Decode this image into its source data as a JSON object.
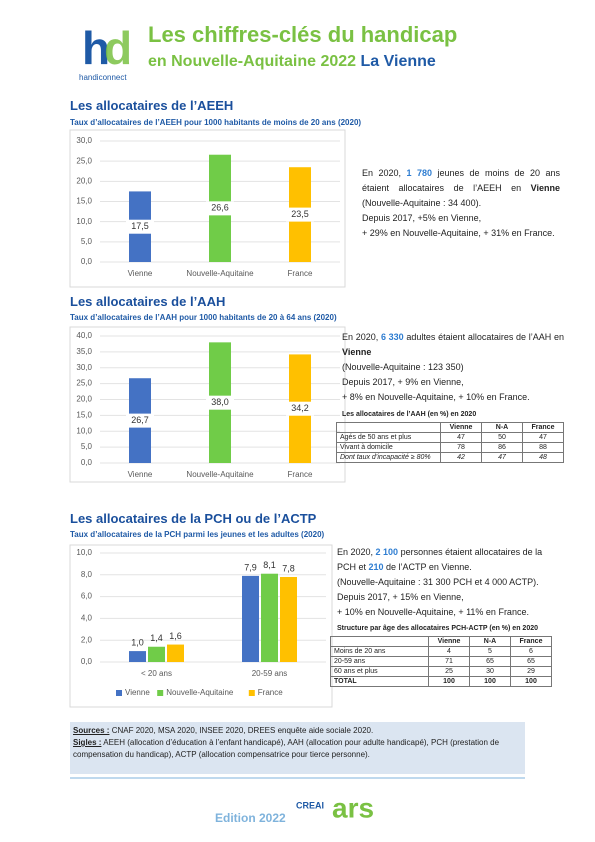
{
  "header": {
    "logo_text": "handiconnect",
    "title": "Les chiffres-clés du handicap",
    "subtitle": "en Nouvelle-Aquitaine 2022",
    "territory": "La Vienne"
  },
  "sections": [
    {
      "heading": "Les allocataires de l’AEEH",
      "text": [
        "En 2020, ",
        "1 780",
        " jeunes de moins de 20 ans étaient allocataires de l’AEEH en ",
        "Vienne",
        " (Nouvelle-Aquitaine : 34 400).",
        "Depuis 2017, +5% en Vienne,",
        "+ 29% en Nouvelle-Aquitaine, + 31% en France."
      ]
    },
    {
      "heading": "Les allocataires de l’AAH",
      "text": [
        "En 2020, ",
        "6 330",
        " adultes étaient allocataires de l’AAH en ",
        "Vienne",
        "(Nouvelle-Aquitaine : 123 350)",
        "Depuis 2017, + 9% en Vienne,",
        "+ 8% en Nouvelle-Aquitaine, + 10% en France."
      ],
      "table": {
        "title": "Les allocataires de l’AAH (en %) en 2020",
        "columns": [
          "Vienne",
          "N-A",
          "France"
        ],
        "rows": [
          [
            "Agés de 50 ans et plus",
            47,
            50,
            47
          ],
          [
            "Vivant à domicile",
            78,
            86,
            88
          ],
          [
            "Dont taux d’incapacité ≥ 80%",
            42,
            47,
            48
          ]
        ]
      }
    },
    {
      "heading": "Les allocataires de la PCH ou de l’ACTP",
      "text": [
        "En 2020, ",
        "2 100",
        " personnes étaient allocataires de la PCH et ",
        "210",
        " de l’ACTP en Vienne.",
        "(Nouvelle-Aquitaine : 31 300 PCH et 4 000 ACTP).",
        "Depuis 2017, + 15% en Vienne,",
        "+ 10% en Nouvelle-Aquitaine, + 11% en France."
      ],
      "table": {
        "title": "Structure par âge des allocataires PCH-ACTP (en %) en 2020",
        "columns": [
          "Vienne",
          "N-A",
          "France"
        ],
        "rows": [
          [
            "Moins de 20 ans",
            4,
            5,
            6
          ],
          [
            "20-59 ans",
            71,
            65,
            65
          ],
          [
            "60 ans et plus",
            25,
            30,
            29
          ],
          [
            "TOTAL",
            100,
            100,
            100
          ]
        ]
      }
    }
  ],
  "chart_data": [
    {
      "type": "bar",
      "title": "Taux d’allocataires de l’AEEH pour 1000 habitants de moins de 20 ans (2020)",
      "categories": [
        "Vienne",
        "Nouvelle-Aquitaine",
        "France"
      ],
      "values": [
        17.5,
        26.6,
        23.5
      ],
      "value_labels": [
        "17,5",
        "26,6",
        "23,5"
      ],
      "colors": [
        "#4472c4",
        "#70cc48",
        "#ffc000"
      ],
      "ylim": [
        0,
        30
      ],
      "yticks": [
        {
          "value": 0,
          "label": "0,0"
        },
        {
          "value": 5,
          "label": "5,0"
        },
        {
          "value": 10,
          "label": "10,0"
        },
        {
          "value": 15,
          "label": "15,0"
        },
        {
          "value": 20,
          "label": "20,0"
        },
        {
          "value": 25,
          "label": "25,0"
        },
        {
          "value": 30,
          "label": "30,0"
        }
      ],
      "grid": true
    },
    {
      "type": "bar",
      "title": "Taux d’allocataires de l’AAH pour 1000 habitants de 20 à 64 ans (2020)",
      "categories": [
        "Vienne",
        "Nouvelle-Aquitaine",
        "France"
      ],
      "values": [
        26.7,
        38.0,
        34.2
      ],
      "value_labels": [
        "26,7",
        "38,0",
        "34,2"
      ],
      "colors": [
        "#4472c4",
        "#70cc48",
        "#ffc000"
      ],
      "ylim": [
        0,
        40
      ],
      "yticks": [
        {
          "value": 0,
          "label": "0,0"
        },
        {
          "value": 5,
          "label": "5,0"
        },
        {
          "value": 10,
          "label": "10,0"
        },
        {
          "value": 15,
          "label": "15,0"
        },
        {
          "value": 20,
          "label": "20,0"
        },
        {
          "value": 25,
          "label": "25,0"
        },
        {
          "value": 30,
          "label": "30,0"
        },
        {
          "value": 35,
          "label": "35,0"
        },
        {
          "value": 40,
          "label": "40,0"
        }
      ],
      "grid": true
    },
    {
      "type": "bar",
      "title": "Taux d’allocataires de la PCH parmi les jeunes et les adultes (2020)",
      "categories": [
        "< 20 ans",
        "20-59 ans"
      ],
      "series": [
        {
          "name": "Vienne",
          "color": "#4472c4",
          "values": [
            1.0,
            7.9
          ],
          "value_labels": [
            "1,0",
            "7,9"
          ]
        },
        {
          "name": "Nouvelle-Aquitaine",
          "color": "#70cc48",
          "values": [
            1.4,
            8.1
          ],
          "value_labels": [
            "1,4",
            "8,1"
          ]
        },
        {
          "name": "France",
          "color": "#ffc000",
          "values": [
            1.6,
            7.8
          ],
          "value_labels": [
            "1,6",
            "7,8"
          ]
        }
      ],
      "ylim": [
        0,
        10
      ],
      "yticks": [
        {
          "value": 0,
          "label": "0,0"
        },
        {
          "value": 2,
          "label": "2,0"
        },
        {
          "value": 4,
          "label": "4,0"
        },
        {
          "value": 6,
          "label": "6,0"
        },
        {
          "value": 8,
          "label": "8,0"
        },
        {
          "value": 10,
          "label": "10,0"
        }
      ],
      "grid": true,
      "legend": "bottom"
    }
  ],
  "footer": {
    "sources_label": "Sources :",
    "sources": "CNAF 2020, MSA 2020, INSEE 2020, DREES enquête aide sociale 2020.",
    "sigles_label": "Sigles :",
    "sigles": "AEEH (allocation d’éducation à l’enfant handicapé), AAH (allocation pour adulte handicapé), PCH (prestation de compensation du handicap), ACTP (allocation compensatrice pour tierce personne).",
    "edition": "Edition 2022",
    "logos": [
      "CREAI",
      "ars"
    ]
  }
}
